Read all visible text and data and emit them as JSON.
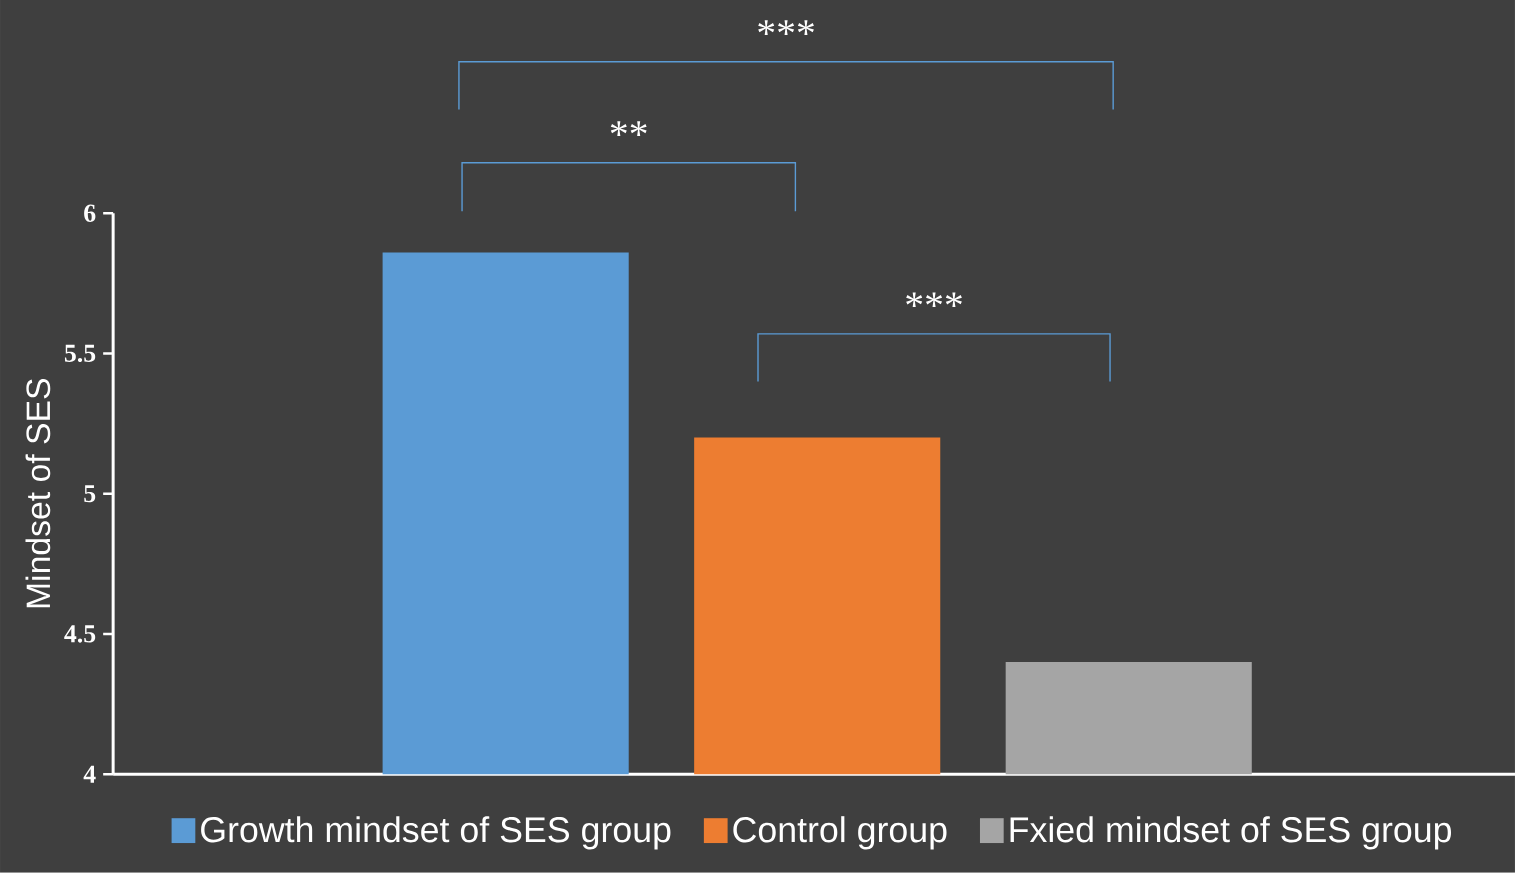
{
  "chart_data": {
    "type": "bar",
    "categories": [
      null
    ],
    "ylabel": "Mindset of SES",
    "ylim": [
      4,
      6
    ],
    "yticks": [
      4,
      4.5,
      5,
      5.5,
      6
    ],
    "legend": "bottom",
    "grid": false,
    "series": [
      {
        "name": "Growth mindset of SES group",
        "color": "#5b9bd5",
        "values": [
          5.86
        ]
      },
      {
        "name": "Control group",
        "color": "#ed7d31",
        "values": [
          5.2
        ]
      },
      {
        "name": "Fxied mindset of SES group",
        "color": "#a5a5a5",
        "values": [
          4.4
        ]
      }
    ],
    "annotations": [
      "***",
      "**",
      "***"
    ]
  }
}
